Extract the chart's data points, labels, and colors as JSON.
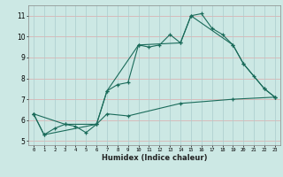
{
  "title": "",
  "xlabel": "Humidex (Indice chaleur)",
  "ylabel": "",
  "bg_color": "#cce8e4",
  "line_color": "#1a6b5a",
  "grid_color": "#aacccc",
  "grid_color_red": "#ddaaaa",
  "xlim": [
    -0.5,
    23.5
  ],
  "ylim": [
    4.8,
    11.5
  ],
  "yticks": [
    5,
    6,
    7,
    8,
    9,
    10,
    11
  ],
  "xticks": [
    0,
    1,
    2,
    3,
    4,
    5,
    6,
    7,
    8,
    9,
    10,
    11,
    12,
    13,
    14,
    15,
    16,
    17,
    18,
    19,
    20,
    21,
    22,
    23
  ],
  "series1_x": [
    0,
    1,
    2,
    3,
    4,
    5,
    6,
    7,
    8,
    9,
    10,
    11,
    12,
    13,
    14,
    15,
    16,
    17,
    18,
    19,
    20,
    21,
    22,
    23
  ],
  "series1_y": [
    6.3,
    5.3,
    5.6,
    5.8,
    5.7,
    5.4,
    5.8,
    7.4,
    7.7,
    7.8,
    9.6,
    9.5,
    9.6,
    10.1,
    9.7,
    11.0,
    11.1,
    10.4,
    10.1,
    9.6,
    8.7,
    8.1,
    7.5,
    7.1
  ],
  "series2_x": [
    0,
    3,
    6,
    7,
    10,
    14,
    15,
    19,
    20,
    22,
    23
  ],
  "series2_y": [
    6.3,
    5.8,
    5.8,
    7.4,
    9.6,
    9.7,
    11.0,
    9.6,
    8.7,
    7.5,
    7.1
  ],
  "series3_x": [
    0,
    1,
    6,
    7,
    9,
    14,
    19,
    23
  ],
  "series3_y": [
    6.3,
    5.3,
    5.8,
    6.3,
    6.2,
    6.8,
    7.0,
    7.1
  ]
}
